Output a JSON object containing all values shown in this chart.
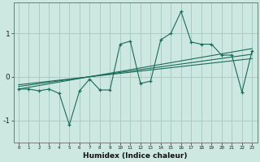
{
  "xlabel": "Humidex (Indice chaleur)",
  "ylabel": "",
  "bg_color": "#cde8e0",
  "grid_color": "#aaccbf",
  "line_color": "#1a6b5a",
  "xlim": [
    -0.5,
    23.5
  ],
  "ylim": [
    -1.5,
    1.7
  ],
  "yticks": [
    -1,
    0,
    1
  ],
  "xticks": [
    0,
    1,
    2,
    3,
    4,
    5,
    6,
    7,
    8,
    9,
    10,
    11,
    12,
    13,
    14,
    15,
    16,
    17,
    18,
    19,
    20,
    21,
    22,
    23
  ],
  "series": [
    [
      0,
      -0.28
    ],
    [
      1,
      -0.28
    ],
    [
      2,
      -0.32
    ],
    [
      3,
      -0.28
    ],
    [
      4,
      -0.38
    ],
    [
      5,
      -1.1
    ],
    [
      6,
      -0.32
    ],
    [
      7,
      -0.05
    ],
    [
      8,
      -0.3
    ],
    [
      9,
      -0.3
    ],
    [
      10,
      0.75
    ],
    [
      11,
      0.82
    ],
    [
      12,
      -0.15
    ],
    [
      13,
      -0.1
    ],
    [
      14,
      0.85
    ],
    [
      15,
      1.0
    ],
    [
      16,
      1.5
    ],
    [
      17,
      0.8
    ],
    [
      18,
      0.75
    ],
    [
      19,
      0.75
    ],
    [
      20,
      0.5
    ],
    [
      21,
      0.5
    ],
    [
      22,
      -0.35
    ],
    [
      23,
      0.6
    ]
  ],
  "linear_lines": [
    {
      "x_start": 0,
      "y_start": -0.28,
      "x_end": 23,
      "y_end": 0.65
    },
    {
      "x_start": 0,
      "y_start": -0.22,
      "x_end": 23,
      "y_end": 0.52
    },
    {
      "x_start": 0,
      "y_start": -0.18,
      "x_end": 23,
      "y_end": 0.42
    }
  ]
}
